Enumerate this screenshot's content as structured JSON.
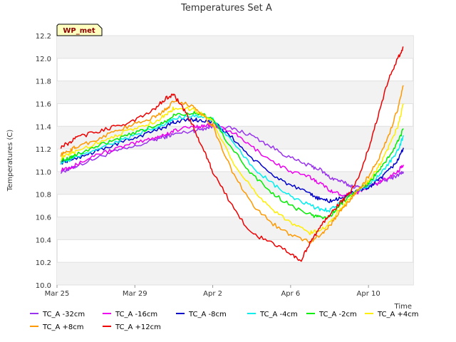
{
  "chart_data": {
    "type": "line",
    "title": "Temperatures Set A",
    "badge": "WP_met",
    "xlabel": "Time",
    "ylabel": "Temperatures (C)",
    "ylim": [
      10.0,
      12.2
    ],
    "yticks": [
      10.0,
      10.2,
      10.4,
      10.6,
      10.8,
      11.0,
      11.2,
      11.4,
      11.6,
      11.8,
      12.0,
      12.2
    ],
    "xlim": [
      0,
      18.3
    ],
    "xticks": [
      {
        "value": 0,
        "label": "Mar 25"
      },
      {
        "value": 4,
        "label": "Mar 29"
      },
      {
        "value": 8,
        "label": "Apr 2"
      },
      {
        "value": 12,
        "label": "Apr 6"
      },
      {
        "value": 16,
        "label": "Apr 10"
      }
    ],
    "grid": "horizontal bands",
    "legend_position": "bottom",
    "series": [
      {
        "name": "TC_A -32cm",
        "color": "#9933ee",
        "x": [
          0.2,
          0.6,
          1,
          2,
          3,
          4,
          5,
          5.6,
          6,
          7,
          7.5,
          8,
          9,
          10,
          11,
          12,
          13,
          13.5,
          14,
          14.5,
          15,
          15.5,
          16,
          16.5,
          17,
          17.5,
          17.8
        ],
        "y": [
          11.0,
          11.02,
          11.05,
          11.12,
          11.18,
          11.22,
          11.28,
          11.31,
          11.33,
          11.36,
          11.38,
          11.4,
          11.38,
          11.32,
          11.22,
          11.12,
          11.05,
          11.02,
          10.95,
          10.92,
          10.88,
          10.86,
          10.88,
          10.9,
          10.93,
          10.97,
          11.0
        ]
      },
      {
        "name": "TC_A -16cm",
        "color": "#ee00ee",
        "x": [
          0.2,
          0.6,
          1,
          2,
          3,
          4,
          5,
          5.6,
          6,
          7,
          7.5,
          8,
          9,
          10,
          11,
          12,
          13,
          13.5,
          14,
          14.5,
          15,
          15.5,
          16,
          16.5,
          17,
          17.5,
          17.8
        ],
        "y": [
          11.02,
          11.04,
          11.06,
          11.15,
          11.2,
          11.25,
          11.3,
          11.33,
          11.36,
          11.4,
          11.4,
          11.42,
          11.35,
          11.22,
          11.1,
          11.0,
          10.95,
          10.9,
          10.84,
          10.8,
          10.8,
          10.82,
          10.86,
          10.9,
          10.95,
          11.0,
          11.06
        ]
      },
      {
        "name": "TC_A -8cm",
        "color": "#0000cc",
        "x": [
          0.2,
          0.6,
          1,
          2,
          3,
          4,
          5,
          5.6,
          6,
          7,
          7.5,
          8,
          9,
          10,
          11,
          12,
          13,
          13.5,
          14,
          14.5,
          15,
          15.5,
          16,
          16.5,
          17,
          17.5,
          17.8
        ],
        "y": [
          11.08,
          11.1,
          11.12,
          11.18,
          11.24,
          11.3,
          11.36,
          11.4,
          11.44,
          11.46,
          11.45,
          11.44,
          11.3,
          11.12,
          10.98,
          10.88,
          10.8,
          10.76,
          10.74,
          10.76,
          10.8,
          10.84,
          10.86,
          10.92,
          11.0,
          11.1,
          11.21
        ]
      },
      {
        "name": "TC_A -4cm",
        "color": "#00eeee",
        "x": [
          0.2,
          0.6,
          1,
          2,
          3,
          4,
          5,
          5.6,
          6,
          7,
          7.5,
          8,
          9,
          10,
          11,
          12,
          13,
          13.5,
          14,
          14.5,
          15,
          15.5,
          16,
          16.5,
          17,
          17.5,
          17.8
        ],
        "y": [
          11.08,
          11.1,
          11.13,
          11.2,
          11.26,
          11.32,
          11.38,
          11.42,
          11.47,
          11.5,
          11.48,
          11.46,
          11.26,
          11.05,
          10.9,
          10.78,
          10.7,
          10.67,
          10.66,
          10.72,
          10.78,
          10.84,
          10.88,
          10.96,
          11.06,
          11.18,
          11.32
        ]
      },
      {
        "name": "TC_A -2cm",
        "color": "#00ee00",
        "x": [
          0.2,
          0.6,
          1,
          2,
          3,
          4,
          5,
          5.6,
          6,
          7,
          7.5,
          8,
          9,
          10,
          11,
          12,
          13,
          13.5,
          14,
          14.5,
          15,
          15.5,
          16,
          16.5,
          17,
          17.5,
          17.8
        ],
        "y": [
          11.1,
          11.12,
          11.15,
          11.22,
          11.28,
          11.34,
          11.4,
          11.45,
          11.5,
          11.52,
          11.5,
          11.46,
          11.2,
          10.98,
          10.82,
          10.7,
          10.62,
          10.6,
          10.6,
          10.7,
          10.78,
          10.84,
          10.9,
          11.0,
          11.12,
          11.26,
          11.38
        ]
      },
      {
        "name": "TC_A +4cm",
        "color": "#ffee00",
        "x": [
          0.2,
          0.6,
          1,
          2,
          3,
          4,
          5,
          5.6,
          6,
          7,
          7.5,
          8,
          9,
          10,
          11,
          12,
          13,
          13.5,
          14,
          14.5,
          15,
          15.5,
          16,
          16.5,
          17,
          17.5,
          17.8
        ],
        "y": [
          11.12,
          11.15,
          11.18,
          11.25,
          11.32,
          11.38,
          11.44,
          11.5,
          11.56,
          11.55,
          11.5,
          11.44,
          11.1,
          10.85,
          10.68,
          10.55,
          10.46,
          10.48,
          10.55,
          10.66,
          10.76,
          10.84,
          10.92,
          11.04,
          11.2,
          11.4,
          11.6
        ]
      },
      {
        "name": "TC_A +8cm",
        "color": "#ff9900",
        "x": [
          0.2,
          0.6,
          1,
          2,
          3,
          4,
          5,
          5.6,
          6,
          7,
          7.5,
          8,
          9,
          10,
          11,
          12,
          13,
          13.5,
          14,
          14.5,
          15,
          15.5,
          16,
          16.5,
          17,
          17.5,
          17.8
        ],
        "y": [
          11.15,
          11.18,
          11.22,
          11.28,
          11.36,
          11.42,
          11.48,
          11.55,
          11.62,
          11.58,
          11.5,
          11.4,
          11.0,
          10.72,
          10.55,
          10.44,
          10.38,
          10.44,
          10.52,
          10.64,
          10.74,
          10.84,
          10.96,
          11.1,
          11.3,
          11.55,
          11.76
        ]
      },
      {
        "name": "TC_A +12cm",
        "color": "#ee0000",
        "x": [
          0.2,
          0.6,
          1,
          2,
          3,
          4,
          5,
          5.6,
          6,
          6.5,
          7,
          7.5,
          8,
          9,
          10,
          11,
          12,
          12.5,
          13,
          13.5,
          14,
          14.5,
          15,
          15.5,
          16,
          16.5,
          17,
          17.5,
          17.8
        ],
        "y": [
          11.22,
          11.25,
          11.3,
          11.35,
          11.4,
          11.45,
          11.55,
          11.65,
          11.68,
          11.55,
          11.4,
          11.2,
          11.0,
          10.7,
          10.45,
          10.38,
          10.28,
          10.2,
          10.38,
          10.5,
          10.62,
          10.72,
          10.8,
          10.95,
          11.2,
          11.5,
          11.8,
          12.0,
          12.1
        ]
      }
    ]
  }
}
